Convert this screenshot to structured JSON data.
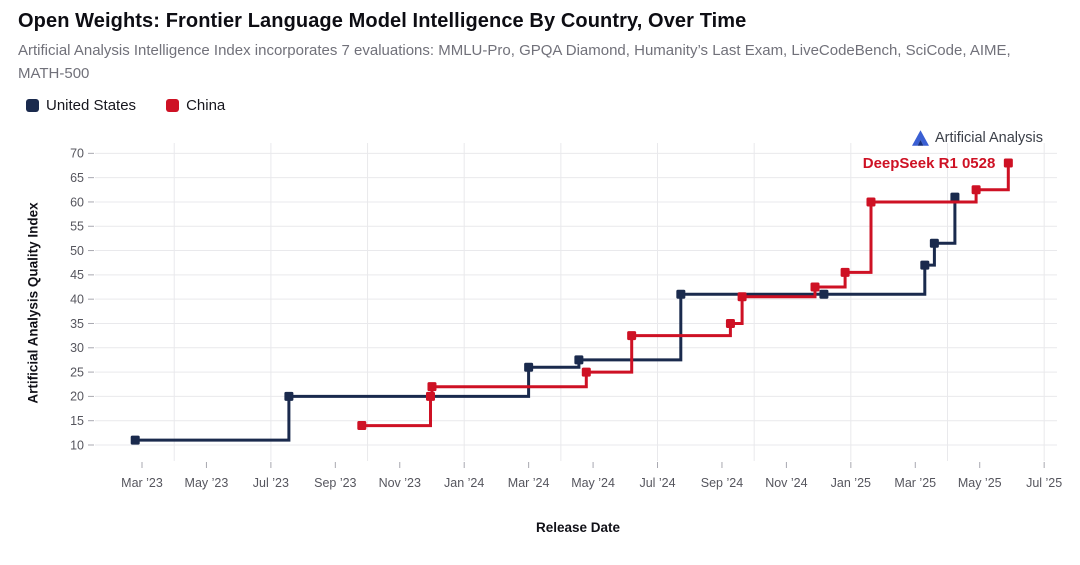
{
  "branding": {
    "logo_text": "Artificial Analysis"
  },
  "legend": {
    "items": [
      {
        "label": "United States",
        "color": "#1A2A4D"
      },
      {
        "label": "China",
        "color": "#CE1124"
      }
    ]
  },
  "chart_data": {
    "type": "line",
    "subtype": "step-after",
    "title": "Open Weights: Frontier Language Model Intelligence By Country, Over Time",
    "subtitle": "Artificial Analysis Intelligence Index incorporates 7 evaluations: MMLU-Pro, GPQA Diamond, Humanity’s Last Exam, LiveCodeBench, SciCode, AIME, MATH-500",
    "xlabel": "Release Date",
    "ylabel": "Artificial Analysis Quality Index",
    "ylim": [
      7,
      72
    ],
    "yticks": [
      10,
      15,
      20,
      25,
      30,
      35,
      40,
      45,
      50,
      55,
      60,
      65,
      70
    ],
    "xticks": [
      "Mar ’23",
      "May ’23",
      "Jul ’23",
      "Sep ’23",
      "Nov ’23",
      "Jan ’24",
      "Mar ’24",
      "May ’24",
      "Jul ’24",
      "Sep ’24",
      "Nov ’24",
      "Jan ’25",
      "Mar ’25",
      "May ’25",
      "Jul ’25"
    ],
    "grid": {
      "horizontal": true,
      "vertical": "quarterly"
    },
    "legend_position": "top-left",
    "series": [
      {
        "name": "United States",
        "color": "#1A2A4D",
        "points": [
          {
            "date": "2023-02-25",
            "value": 11
          },
          {
            "date": "2023-07-18",
            "value": 20
          },
          {
            "date": "2024-03-01",
            "value": 26
          },
          {
            "date": "2024-04-18",
            "value": 27.5
          },
          {
            "date": "2024-07-23",
            "value": 41
          },
          {
            "date": "2024-12-06",
            "value": 41
          },
          {
            "date": "2025-03-10",
            "value": 47
          },
          {
            "date": "2025-03-19",
            "value": 51.5
          },
          {
            "date": "2025-04-08",
            "value": 61
          }
        ]
      },
      {
        "name": "China",
        "color": "#CE1124",
        "points": [
          {
            "date": "2023-09-26",
            "value": 14
          },
          {
            "date": "2023-11-30",
            "value": 20
          },
          {
            "date": "2023-12-01",
            "value": 22
          },
          {
            "date": "2024-04-25",
            "value": 25
          },
          {
            "date": "2024-06-07",
            "value": 32.5
          },
          {
            "date": "2024-09-09",
            "value": 35
          },
          {
            "date": "2024-09-20",
            "value": 40.5
          },
          {
            "date": "2024-11-28",
            "value": 42.5
          },
          {
            "date": "2024-12-26",
            "value": 45.5
          },
          {
            "date": "2025-01-20",
            "value": 60
          },
          {
            "date": "2025-04-28",
            "value": 62.5
          },
          {
            "date": "2025-05-28",
            "value": 68
          }
        ]
      }
    ],
    "annotations": [
      {
        "text": "DeepSeek R1 0528",
        "series": "China",
        "date": "2025-05-28",
        "value": 68
      }
    ]
  }
}
